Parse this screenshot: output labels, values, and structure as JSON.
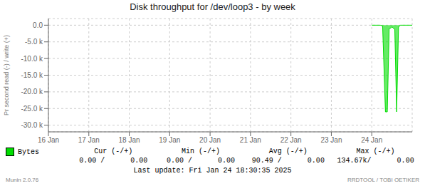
{
  "chart_data": {
    "type": "area",
    "title": "Disk throughput for /dev/loop3 - by week",
    "ylabel": "Pr second read (-) / write (+)",
    "x": [
      1737676800,
      1737695000,
      1737700000,
      1737706000,
      1737710000,
      1737714000,
      1737718000,
      1737720000,
      1737722000,
      1737726000,
      1737730000,
      1737734000,
      1737736000,
      1737738000,
      1737763200
    ],
    "series": [
      {
        "name": "Bytes",
        "color": "#00dd00",
        "values": [
          0,
          0,
          -200,
          -26000,
          -26000,
          -1000,
          -800,
          -500,
          -800,
          -1200,
          -26000,
          -500,
          -300,
          0,
          0
        ]
      }
    ],
    "xlim": [
      1736985600,
      1737763200
    ],
    "xticks": [
      {
        "value": 1736985600,
        "label": "16 Jan"
      },
      {
        "value": 1737072000,
        "label": "17 Jan"
      },
      {
        "value": 1737158400,
        "label": "18 Jan"
      },
      {
        "value": 1737244800,
        "label": "19 Jan"
      },
      {
        "value": 1737331200,
        "label": "20 Jan"
      },
      {
        "value": 1737417600,
        "label": "21 Jan"
      },
      {
        "value": 1737504000,
        "label": "22 Jan"
      },
      {
        "value": 1737590400,
        "label": "23 Jan"
      },
      {
        "value": 1737676800,
        "label": "24 Jan"
      }
    ],
    "ylim": [
      -32000,
      2000
    ],
    "yticks": [
      {
        "value": 0,
        "label": "0.0"
      },
      {
        "value": -5000,
        "label": "-5.0 k"
      },
      {
        "value": -10000,
        "label": "-10.0 k"
      },
      {
        "value": -15000,
        "label": "-15.0 k"
      },
      {
        "value": -20000,
        "label": "-20.0 k"
      },
      {
        "value": -25000,
        "label": "-25.0 k"
      },
      {
        "value": -30000,
        "label": "-30.0 k"
      }
    ],
    "grid": true,
    "annotations": [
      "Cur (-/+)",
      "Min (-/+)",
      "Avg (-/+)",
      "Max (-/+)",
      "0.00 /      0.00",
      "0.00 /      0.00",
      "90.49 /      0.00",
      "134.67k/      0.00",
      "Last update: Fri Jan 24 18:30:35 2025",
      "Munin 2.0.76",
      "RRDTOOL / TOBI OETIKER"
    ]
  }
}
